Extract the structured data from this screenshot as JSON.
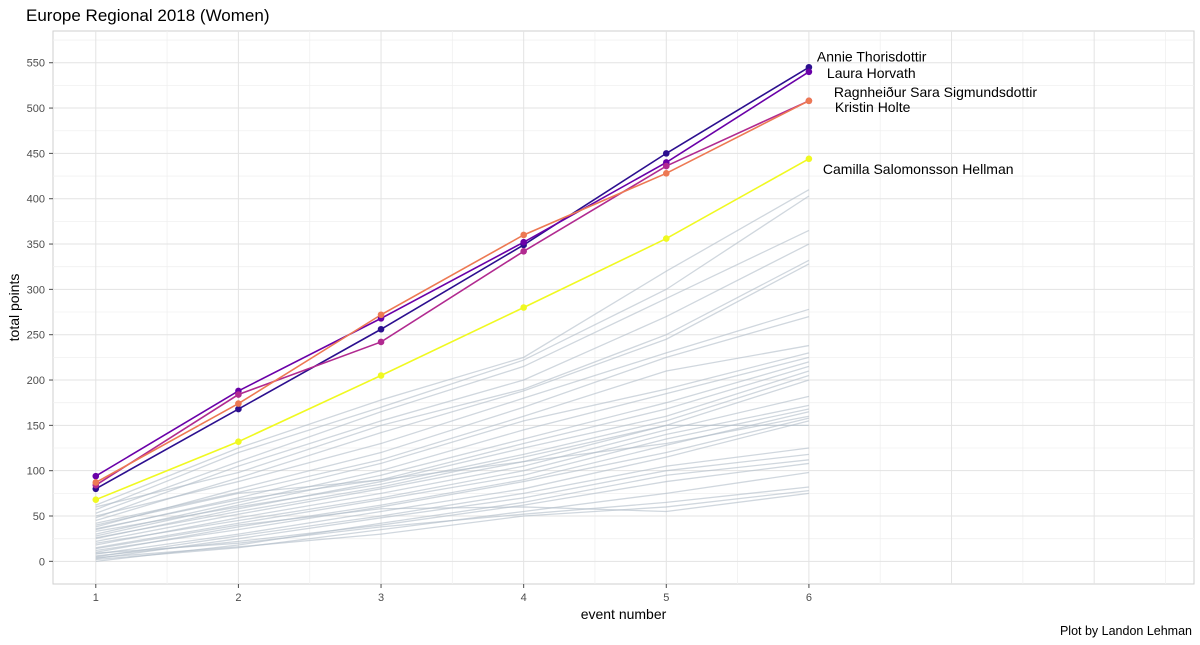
{
  "chart_data": {
    "type": "line",
    "title": "Europe Regional 2018 (Women)",
    "xlabel": "event number",
    "ylabel": "total points",
    "caption": "Plot by Landon Lehman",
    "x": [
      1,
      2,
      3,
      4,
      5,
      6
    ],
    "x_ticks": [
      "1",
      "2",
      "3",
      "4",
      "5",
      "6"
    ],
    "y_ticks": [
      "0",
      "50",
      "100",
      "150",
      "200",
      "250",
      "300",
      "350",
      "400",
      "450",
      "500",
      "550"
    ],
    "xlim": [
      0.7,
      8.7
    ],
    "ylim": [
      -25,
      585
    ],
    "grid": true,
    "highlighted_series": [
      {
        "name": "Annie Thorisdottir",
        "color": "#2c0f8f",
        "values": [
          80,
          168,
          256,
          349,
          450,
          545
        ]
      },
      {
        "name": "Laura Horvath",
        "color": "#6a00a8",
        "values": [
          94,
          188,
          268,
          352,
          440,
          540
        ]
      },
      {
        "name": "Ragnheiður Sara Sigmundsdottir",
        "color": "#b12a90",
        "values": [
          84,
          184,
          242,
          342,
          436,
          508
        ]
      },
      {
        "name": "Kristin Holte",
        "color": "#ed7953",
        "values": [
          87,
          174,
          272,
          360,
          428,
          508
        ]
      },
      {
        "name": "Camilla Salomonsson Hellman",
        "color": "#f0f921",
        "values": [
          68,
          132,
          205,
          280,
          356,
          444
        ]
      }
    ],
    "background_series_color": "#b0bcc8",
    "background_series": [
      [
        62,
        125,
        178,
        225,
        320,
        410
      ],
      [
        57,
        120,
        170,
        222,
        300,
        403
      ],
      [
        53,
        110,
        165,
        215,
        290,
        365
      ],
      [
        48,
        105,
        155,
        200,
        270,
        350
      ],
      [
        60,
        98,
        150,
        190,
        250,
        332
      ],
      [
        45,
        92,
        142,
        188,
        245,
        328
      ],
      [
        50,
        88,
        130,
        180,
        230,
        278
      ],
      [
        38,
        80,
        120,
        170,
        225,
        270
      ],
      [
        42,
        76,
        112,
        160,
        210,
        238
      ],
      [
        35,
        70,
        108,
        155,
        190,
        230
      ],
      [
        30,
        65,
        100,
        145,
        185,
        225
      ],
      [
        28,
        62,
        95,
        135,
        175,
        220
      ],
      [
        40,
        75,
        90,
        130,
        168,
        215
      ],
      [
        25,
        58,
        88,
        125,
        160,
        210
      ],
      [
        33,
        60,
        85,
        118,
        155,
        205
      ],
      [
        22,
        52,
        80,
        110,
        150,
        200
      ],
      [
        18,
        48,
        75,
        105,
        145,
        182
      ],
      [
        20,
        45,
        70,
        100,
        140,
        172
      ],
      [
        15,
        42,
        68,
        95,
        135,
        168
      ],
      [
        10,
        38,
        62,
        90,
        128,
        165
      ],
      [
        12,
        35,
        60,
        88,
        120,
        158
      ],
      [
        8,
        30,
        55,
        80,
        115,
        155
      ],
      [
        26,
        55,
        82,
        115,
        150,
        150
      ],
      [
        5,
        28,
        50,
        75,
        105,
        125
      ],
      [
        3,
        25,
        48,
        70,
        100,
        118
      ],
      [
        0,
        18,
        42,
        65,
        95,
        112
      ],
      [
        6,
        22,
        40,
        62,
        88,
        108
      ],
      [
        2,
        15,
        35,
        55,
        75,
        98
      ],
      [
        9,
        20,
        38,
        52,
        65,
        82
      ],
      [
        4,
        16,
        30,
        50,
        60,
        78
      ],
      [
        14,
        40,
        58,
        60,
        55,
        75
      ],
      [
        36,
        68,
        90,
        110,
        130,
        160
      ]
    ]
  }
}
